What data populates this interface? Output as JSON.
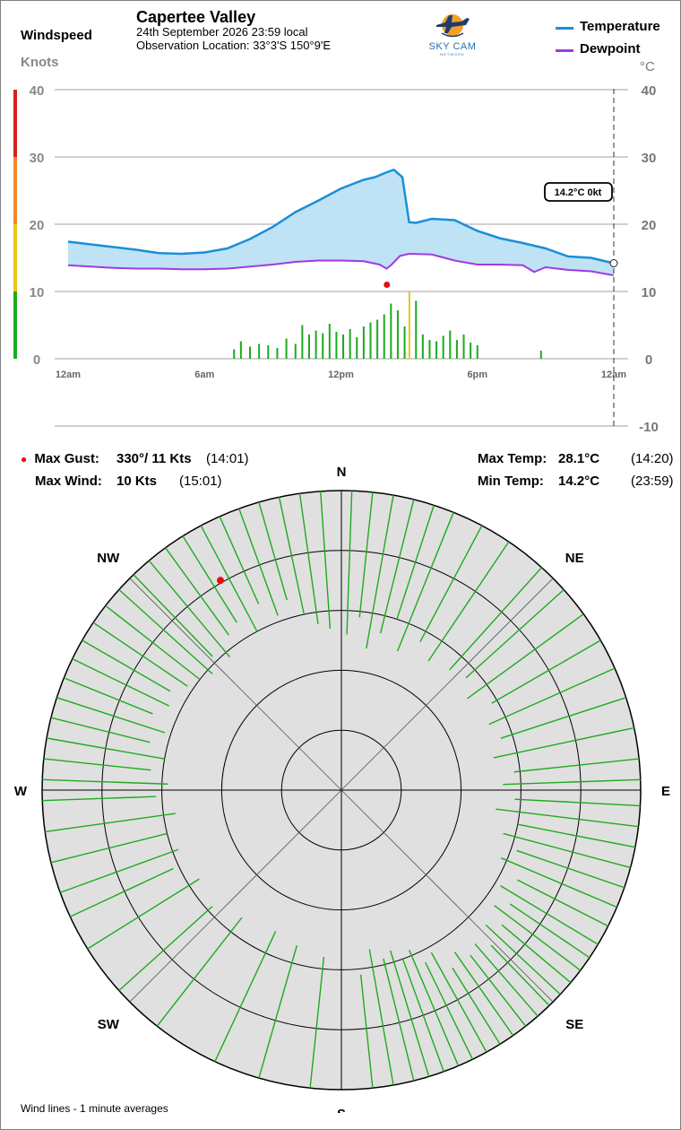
{
  "header": {
    "wind_title": "Windspeed",
    "station": "Capertee Valley",
    "date_line": "24th September 2026  23:59 local",
    "location_line": "Observation Location:  33°3'S 150°9'E",
    "knots_unit": "Knots",
    "temp_unit": "°C",
    "logo_text": "SKY CAM",
    "logo_subtext": "NETWORK"
  },
  "legend": [
    {
      "label": "Temperature",
      "color": "#1a8fd9"
    },
    {
      "label": "Dewpoint",
      "color": "#a03ae0"
    }
  ],
  "current_readout": "14.2°C  0kt",
  "stats": {
    "max_gust_label": "Max Gust:",
    "max_gust_value": "330°/  11 Kts",
    "max_gust_time": "(14:01)",
    "max_wind_label": "Max Wind:",
    "max_wind_value": "10 Kts",
    "max_wind_time": "(15:01)",
    "max_temp_label": "Max Temp:",
    "max_temp_value": "28.1°C",
    "max_temp_time": "(14:20)",
    "min_temp_label": "Min Temp:",
    "min_temp_value": "14.2°C",
    "min_temp_time": "(23:59)"
  },
  "compass_labels": [
    "N",
    "NE",
    "E",
    "SE",
    "S",
    "SW",
    "W",
    "NW"
  ],
  "footnote": "Wind lines - 1 minute averages",
  "colors": {
    "temperature": "#1a8fd9",
    "temp_fill": "#bfe2f5",
    "dewpoint": "#a03ae0",
    "wind": "#1daa1d",
    "gust_marker": "#e01010",
    "wind_scale": [
      "#1daa1d",
      "#e8c81a",
      "#ef8a25",
      "#d42020"
    ],
    "rose_bg": "#e0e0e0"
  },
  "chart_data": [
    {
      "type": "line",
      "x_unit": "hour of day",
      "x_ticks": [
        "12am",
        "6am",
        "12pm",
        "6pm",
        "12am"
      ],
      "x_tick_hours": [
        0,
        6,
        12,
        18,
        24
      ],
      "y_left_label": "Knots",
      "y_left_ticks": [
        0,
        10,
        20,
        30,
        40
      ],
      "y_left_range": [
        0,
        40
      ],
      "y_right_label": "°C",
      "y_right_ticks": [
        -10,
        0,
        10,
        20,
        30,
        40
      ],
      "y_right_range": [
        -10,
        40
      ],
      "grid": true,
      "series": [
        {
          "name": "Temperature",
          "x": [
            0,
            1,
            2,
            3,
            4,
            5,
            6,
            7,
            8,
            9,
            10,
            11,
            12,
            13,
            13.5,
            14,
            14.33,
            14.7,
            15.0,
            15.3,
            16,
            17,
            18,
            19,
            20,
            21,
            22,
            23,
            23.99
          ],
          "y": [
            17.4,
            17.0,
            16.6,
            16.2,
            15.7,
            15.6,
            15.8,
            16.4,
            17.8,
            19.6,
            21.8,
            23.5,
            25.3,
            26.6,
            27.0,
            27.7,
            28.1,
            27.0,
            20.3,
            20.2,
            20.8,
            20.6,
            19.0,
            17.9,
            17.2,
            16.4,
            15.2,
            15.0,
            14.2
          ]
        },
        {
          "name": "Dewpoint",
          "x": [
            0,
            1,
            2,
            3,
            4,
            5,
            6,
            7,
            8,
            9,
            10,
            11,
            12,
            13,
            13.7,
            14.0,
            14.2,
            14.6,
            15.0,
            16,
            17,
            18,
            19,
            20,
            20.5,
            21,
            22,
            23,
            23.99
          ],
          "y": [
            13.9,
            13.7,
            13.5,
            13.4,
            13.4,
            13.3,
            13.3,
            13.4,
            13.7,
            14.0,
            14.4,
            14.6,
            14.6,
            14.5,
            14.0,
            13.4,
            13.9,
            15.3,
            15.6,
            15.5,
            14.6,
            14.0,
            14.0,
            13.9,
            12.9,
            13.6,
            13.2,
            13.0,
            12.4
          ]
        },
        {
          "name": "Windspeed",
          "type": "bar",
          "x": [
            7.3,
            7.6,
            8.0,
            8.4,
            8.8,
            9.2,
            9.6,
            10.0,
            10.3,
            10.6,
            10.9,
            11.2,
            11.5,
            11.8,
            12.1,
            12.4,
            12.7,
            13.0,
            13.3,
            13.6,
            13.9,
            14.2,
            14.5,
            14.8,
            15.01,
            15.3,
            15.6,
            15.9,
            16.2,
            16.5,
            16.8,
            17.1,
            17.4,
            17.7,
            18.0,
            20.8
          ],
          "y": [
            1.4,
            2.6,
            1.8,
            2.2,
            2.0,
            1.6,
            3.0,
            2.2,
            5.0,
            3.6,
            4.2,
            3.8,
            5.2,
            4.0,
            3.6,
            4.4,
            3.2,
            4.8,
            5.4,
            5.8,
            6.6,
            8.2,
            7.2,
            4.8,
            10.0,
            8.6,
            3.6,
            2.8,
            2.6,
            3.4,
            4.2,
            2.8,
            3.6,
            2.4,
            2.0,
            1.2
          ]
        }
      ],
      "max_gust": {
        "hour": 14.02,
        "knots": 11
      }
    },
    {
      "type": "scatter",
      "title": "",
      "polar": true,
      "rings_knots": [
        2,
        4,
        6,
        8,
        10
      ],
      "direction_unit": "degrees",
      "wind_lines": [
        {
          "dir": 2,
          "speed": 5.2
        },
        {
          "dir": 6,
          "speed": 5.8
        },
        {
          "dir": 10,
          "speed": 4.8
        },
        {
          "dir": 14,
          "speed": 5.4
        },
        {
          "dir": 18,
          "speed": 6.0
        },
        {
          "dir": 22,
          "speed": 5.0
        },
        {
          "dir": 28,
          "speed": 5.6
        },
        {
          "dir": 34,
          "speed": 5.2
        },
        {
          "dir": 42,
          "speed": 5.4
        },
        {
          "dir": 48,
          "speed": 5.6
        },
        {
          "dir": 54,
          "speed": 5.2
        },
        {
          "dir": 60,
          "speed": 5.8
        },
        {
          "dir": 66,
          "speed": 5.4
        },
        {
          "dir": 72,
          "speed": 5.6
        },
        {
          "dir": 78,
          "speed": 5.2
        },
        {
          "dir": 84,
          "speed": 5.8
        },
        {
          "dir": 88,
          "speed": 5.4
        },
        {
          "dir": 93,
          "speed": 5.8
        },
        {
          "dir": 97,
          "speed": 5.2
        },
        {
          "dir": 101,
          "speed": 6.0
        },
        {
          "dir": 105,
          "speed": 5.6
        },
        {
          "dir": 109,
          "speed": 6.2
        },
        {
          "dir": 113,
          "speed": 5.8
        },
        {
          "dir": 117,
          "speed": 6.6
        },
        {
          "dir": 121,
          "speed": 6.2
        },
        {
          "dir": 124,
          "speed": 6.8
        },
        {
          "dir": 127,
          "speed": 6.4
        },
        {
          "dir": 130,
          "speed": 7.0
        },
        {
          "dir": 133,
          "speed": 6.6
        },
        {
          "dir": 136,
          "speed": 7.2
        },
        {
          "dir": 139,
          "speed": 6.8
        },
        {
          "dir": 142,
          "speed": 7.0
        },
        {
          "dir": 145,
          "speed": 6.6
        },
        {
          "dir": 148,
          "speed": 7.0
        },
        {
          "dir": 151,
          "speed": 6.2
        },
        {
          "dir": 154,
          "speed": 6.4
        },
        {
          "dir": 157,
          "speed": 5.8
        },
        {
          "dir": 160,
          "speed": 6.0
        },
        {
          "dir": 163,
          "speed": 5.6
        },
        {
          "dir": 166,
          "speed": 5.8
        },
        {
          "dir": 170,
          "speed": 5.4
        },
        {
          "dir": 174,
          "speed": 6.2
        },
        {
          "dir": 186,
          "speed": 5.6
        },
        {
          "dir": 196,
          "speed": 5.4
        },
        {
          "dir": 205,
          "speed": 5.2
        },
        {
          "dir": 218,
          "speed": 5.4
        },
        {
          "dir": 228,
          "speed": 5.8
        },
        {
          "dir": 238,
          "speed": 5.6
        },
        {
          "dir": 245,
          "speed": 6.2
        },
        {
          "dir": 250,
          "speed": 5.8
        },
        {
          "dir": 256,
          "speed": 6.0
        },
        {
          "dir": 262,
          "speed": 5.6
        },
        {
          "dir": 268,
          "speed": 6.2
        },
        {
          "dir": 272,
          "speed": 5.8
        },
        {
          "dir": 276,
          "speed": 6.4
        },
        {
          "dir": 280,
          "speed": 6.0
        },
        {
          "dir": 284,
          "speed": 6.6
        },
        {
          "dir": 288,
          "speed": 6.2
        },
        {
          "dir": 292,
          "speed": 6.8
        },
        {
          "dir": 296,
          "speed": 6.4
        },
        {
          "dir": 300,
          "speed": 6.6
        },
        {
          "dir": 304,
          "speed": 6.2
        },
        {
          "dir": 308,
          "speed": 6.0
        },
        {
          "dir": 312,
          "speed": 5.8
        },
        {
          "dir": 316,
          "speed": 6.2
        },
        {
          "dir": 320,
          "speed": 5.8
        },
        {
          "dir": 324,
          "speed": 6.4
        },
        {
          "dir": 328,
          "speed": 6.6
        },
        {
          "dir": 332,
          "speed": 6.0
        },
        {
          "dir": 336,
          "speed": 6.8
        },
        {
          "dir": 340,
          "speed": 6.2
        },
        {
          "dir": 344,
          "speed": 6.6
        },
        {
          "dir": 348,
          "speed": 6.0
        },
        {
          "dir": 352,
          "speed": 5.6
        },
        {
          "dir": 356,
          "speed": 5.4
        },
        {
          "dir": 138,
          "speed": 10.0,
          "max_wind": true
        }
      ],
      "max_gust": {
        "dir": 330,
        "speed": 11
      }
    }
  ]
}
